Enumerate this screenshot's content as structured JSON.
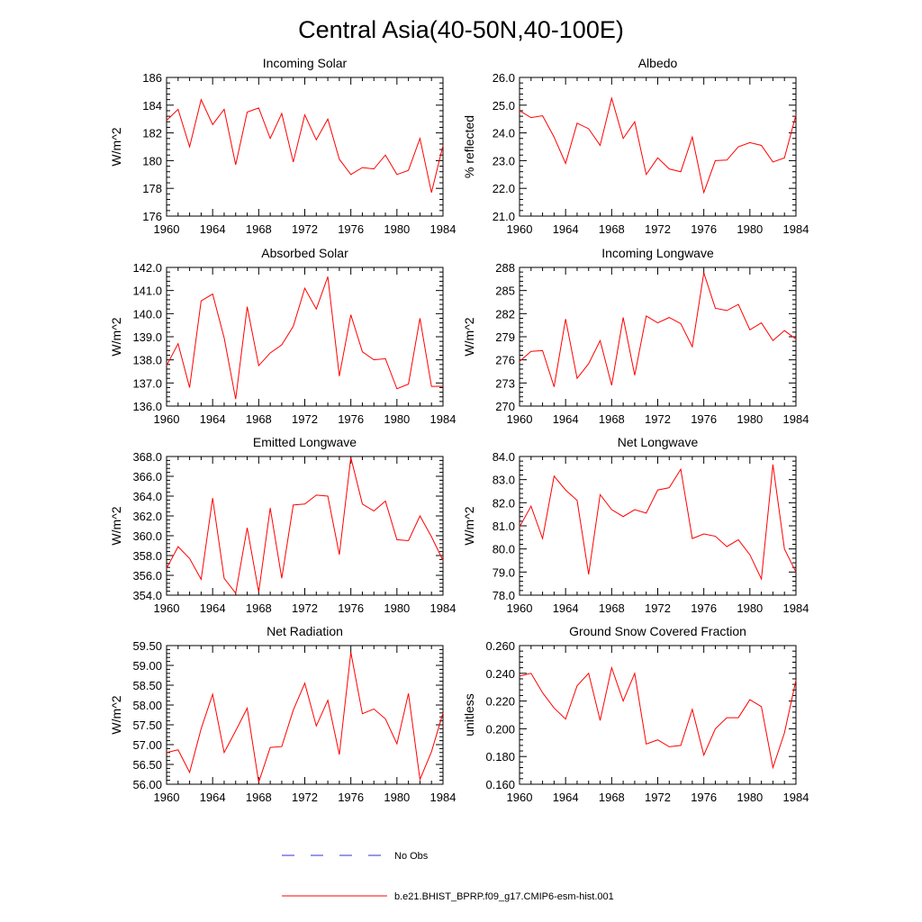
{
  "title": "Central Asia(40-50N,40-100E)",
  "colors": {
    "model": "#ff0000",
    "obs": "#3333cc",
    "axis": "#000000"
  },
  "legend": [
    {
      "label": "No Obs",
      "style": "dashed",
      "color": "#3333cc"
    },
    {
      "label": "b.e21.BHIST_BPRP.f09_g17.CMIP6-esm-hist.001",
      "style": "solid",
      "color": "#ff0000"
    }
  ],
  "chart_data": [
    {
      "type": "line",
      "title": "Incoming Solar",
      "ylabel": "W/m^2",
      "xlim": [
        1960,
        1984
      ],
      "ylim": [
        176,
        186
      ],
      "yticks": [
        176,
        178,
        180,
        182,
        184,
        186
      ],
      "ytick_labels": [
        "176",
        "178",
        "180",
        "182",
        "184",
        "186"
      ],
      "xticks": [
        1960,
        1964,
        1968,
        1972,
        1976,
        1980,
        1984
      ],
      "xtick_labels": [
        "1960",
        "1964",
        "1968",
        "1972",
        "1976",
        "1980",
        "1984"
      ],
      "x": [
        1960,
        1961,
        1962,
        1963,
        1964,
        1965,
        1966,
        1967,
        1968,
        1969,
        1970,
        1971,
        1972,
        1973,
        1974,
        1975,
        1976,
        1977,
        1978,
        1979,
        1980,
        1981,
        1982,
        1983,
        1984
      ],
      "series": [
        {
          "name": "b.e21.BHIST_BPRP.f09_g17.CMIP6-esm-hist.001",
          "values": [
            182.9,
            183.7,
            181.0,
            184.4,
            182.6,
            183.7,
            179.7,
            183.5,
            183.8,
            181.6,
            183.4,
            179.9,
            183.3,
            181.5,
            183.0,
            180.1,
            179.0,
            179.5,
            179.4,
            180.4,
            179.0,
            179.3,
            181.6,
            177.7,
            181.1
          ]
        }
      ]
    },
    {
      "type": "line",
      "title": "Albedo",
      "ylabel": "% reflected",
      "xlim": [
        1960,
        1984
      ],
      "ylim": [
        21,
        26
      ],
      "yticks": [
        21,
        22,
        23,
        24,
        25,
        26
      ],
      "ytick_labels": [
        "21.0",
        "22.0",
        "23.0",
        "24.0",
        "25.0",
        "26.0"
      ],
      "xticks": [
        1960,
        1964,
        1968,
        1972,
        1976,
        1980,
        1984
      ],
      "xtick_labels": [
        "1960",
        "1964",
        "1968",
        "1972",
        "1976",
        "1980",
        "1984"
      ],
      "x": [
        1960,
        1961,
        1962,
        1963,
        1964,
        1965,
        1966,
        1967,
        1968,
        1969,
        1970,
        1971,
        1972,
        1973,
        1974,
        1975,
        1976,
        1977,
        1978,
        1979,
        1980,
        1981,
        1982,
        1983,
        1984
      ],
      "series": [
        {
          "name": "b.e21.BHIST_BPRP.f09_g17.CMIP6-esm-hist.001",
          "values": [
            24.8,
            24.55,
            24.62,
            23.85,
            22.9,
            24.35,
            24.15,
            23.55,
            25.25,
            23.8,
            24.4,
            22.5,
            23.1,
            22.7,
            22.6,
            23.85,
            21.85,
            23.0,
            23.02,
            23.5,
            23.65,
            23.55,
            22.95,
            23.1,
            24.65
          ]
        }
      ]
    },
    {
      "type": "line",
      "title": "Absorbed Solar",
      "ylabel": "W/m^2",
      "xlim": [
        1960,
        1984
      ],
      "ylim": [
        136,
        142
      ],
      "yticks": [
        136,
        137,
        138,
        139,
        140,
        141,
        142
      ],
      "ytick_labels": [
        "136.0",
        "137.0",
        "138.0",
        "139.0",
        "140.0",
        "141.0",
        "142.0"
      ],
      "xticks": [
        1960,
        1964,
        1968,
        1972,
        1976,
        1980,
        1984
      ],
      "xtick_labels": [
        "1960",
        "1964",
        "1968",
        "1972",
        "1976",
        "1980",
        "1984"
      ],
      "x": [
        1960,
        1961,
        1962,
        1963,
        1964,
        1965,
        1966,
        1967,
        1968,
        1969,
        1970,
        1971,
        1972,
        1973,
        1974,
        1975,
        1976,
        1977,
        1978,
        1979,
        1980,
        1981,
        1982,
        1983,
        1984
      ],
      "series": [
        {
          "name": "b.e21.BHIST_BPRP.f09_g17.CMIP6-esm-hist.001",
          "values": [
            137.75,
            138.7,
            136.8,
            140.55,
            140.85,
            138.95,
            136.3,
            140.3,
            137.75,
            138.3,
            138.65,
            139.45,
            141.1,
            140.2,
            141.6,
            137.3,
            139.95,
            138.35,
            138.0,
            138.05,
            136.75,
            136.95,
            139.8,
            136.85,
            136.85
          ]
        }
      ]
    },
    {
      "type": "line",
      "title": "Incoming Longwave",
      "ylabel": "W/m^2",
      "xlim": [
        1960,
        1984
      ],
      "ylim": [
        270,
        288
      ],
      "yticks": [
        270,
        273,
        276,
        279,
        282,
        285,
        288
      ],
      "ytick_labels": [
        "270",
        "273",
        "276",
        "279",
        "282",
        "285",
        "288"
      ],
      "xticks": [
        1960,
        1964,
        1968,
        1972,
        1976,
        1980,
        1984
      ],
      "xtick_labels": [
        "1960",
        "1964",
        "1968",
        "1972",
        "1976",
        "1980",
        "1984"
      ],
      "x": [
        1960,
        1961,
        1962,
        1963,
        1964,
        1965,
        1966,
        1967,
        1968,
        1969,
        1970,
        1971,
        1972,
        1973,
        1974,
        1975,
        1976,
        1977,
        1978,
        1979,
        1980,
        1981,
        1982,
        1983,
        1984
      ],
      "series": [
        {
          "name": "b.e21.BHIST_BPRP.f09_g17.CMIP6-esm-hist.001",
          "values": [
            275.8,
            277.1,
            277.2,
            272.5,
            281.3,
            273.6,
            275.5,
            278.5,
            272.7,
            281.5,
            274.0,
            281.7,
            280.8,
            281.5,
            280.7,
            277.7,
            287.3,
            282.7,
            282.4,
            283.2,
            279.9,
            280.8,
            278.5,
            279.8,
            278.7
          ]
        }
      ]
    },
    {
      "type": "line",
      "title": "Emitted Longwave",
      "ylabel": "W/m^2",
      "xlim": [
        1960,
        1984
      ],
      "ylim": [
        354,
        368
      ],
      "yticks": [
        354,
        356,
        358,
        360,
        362,
        364,
        366,
        368
      ],
      "ytick_labels": [
        "354.0",
        "356.0",
        "358.0",
        "360.0",
        "362.0",
        "364.0",
        "366.0",
        "368.0"
      ],
      "xticks": [
        1960,
        1964,
        1968,
        1972,
        1976,
        1980,
        1984
      ],
      "xtick_labels": [
        "1960",
        "1964",
        "1968",
        "1972",
        "1976",
        "1980",
        "1984"
      ],
      "x": [
        1960,
        1961,
        1962,
        1963,
        1964,
        1965,
        1966,
        1967,
        1968,
        1969,
        1970,
        1971,
        1972,
        1973,
        1974,
        1975,
        1976,
        1977,
        1978,
        1979,
        1980,
        1981,
        1982,
        1983,
        1984
      ],
      "series": [
        {
          "name": "b.e21.BHIST_BPRP.f09_g17.CMIP6-esm-hist.001",
          "values": [
            356.7,
            358.9,
            357.7,
            355.6,
            363.8,
            355.7,
            354.2,
            360.8,
            354.3,
            362.8,
            355.7,
            363.1,
            363.2,
            364.1,
            364.0,
            358.1,
            367.9,
            363.2,
            362.5,
            363.5,
            359.6,
            359.5,
            362.0,
            359.9,
            357.5
          ]
        }
      ]
    },
    {
      "type": "line",
      "title": "Net Longwave",
      "ylabel": "W/m^2",
      "xlim": [
        1960,
        1984
      ],
      "ylim": [
        78,
        84
      ],
      "yticks": [
        78,
        79,
        80,
        81,
        82,
        83,
        84
      ],
      "ytick_labels": [
        "78.0",
        "79.0",
        "80.0",
        "81.0",
        "82.0",
        "83.0",
        "84.0"
      ],
      "xticks": [
        1960,
        1964,
        1968,
        1972,
        1976,
        1980,
        1984
      ],
      "xtick_labels": [
        "1960",
        "1964",
        "1968",
        "1972",
        "1976",
        "1980",
        "1984"
      ],
      "x": [
        1960,
        1961,
        1962,
        1963,
        1964,
        1965,
        1966,
        1967,
        1968,
        1969,
        1970,
        1971,
        1972,
        1973,
        1974,
        1975,
        1976,
        1977,
        1978,
        1979,
        1980,
        1981,
        1982,
        1983,
        1984
      ],
      "series": [
        {
          "name": "b.e21.BHIST_BPRP.f09_g17.CMIP6-esm-hist.001",
          "values": [
            80.95,
            81.85,
            80.45,
            83.15,
            82.55,
            82.1,
            78.9,
            82.35,
            81.7,
            81.4,
            81.7,
            81.55,
            82.55,
            82.65,
            83.45,
            80.45,
            80.65,
            80.55,
            80.1,
            80.4,
            79.75,
            78.7,
            83.65,
            80.0,
            79.0
          ]
        }
      ]
    },
    {
      "type": "line",
      "title": "Net Radiation",
      "ylabel": "W/m^2",
      "xlim": [
        1960,
        1984
      ],
      "ylim": [
        56,
        59.5
      ],
      "yticks": [
        56,
        56.5,
        57,
        57.5,
        58,
        58.5,
        59,
        59.5
      ],
      "ytick_labels": [
        "56.00",
        "56.50",
        "57.00",
        "57.50",
        "58.00",
        "58.50",
        "59.00",
        "59.50"
      ],
      "xticks": [
        1960,
        1964,
        1968,
        1972,
        1976,
        1980,
        1984
      ],
      "xtick_labels": [
        "1960",
        "1964",
        "1968",
        "1972",
        "1976",
        "1980",
        "1984"
      ],
      "x": [
        1960,
        1961,
        1962,
        1963,
        1964,
        1965,
        1966,
        1967,
        1968,
        1969,
        1970,
        1971,
        1972,
        1973,
        1974,
        1975,
        1976,
        1977,
        1978,
        1979,
        1980,
        1981,
        1982,
        1983,
        1984
      ],
      "series": [
        {
          "name": "b.e21.BHIST_BPRP.f09_g17.CMIP6-esm-hist.001",
          "values": [
            56.8,
            56.87,
            56.3,
            57.4,
            58.27,
            56.8,
            57.35,
            57.92,
            56.05,
            56.93,
            56.95,
            57.87,
            58.55,
            57.47,
            58.12,
            56.75,
            59.33,
            57.78,
            57.9,
            57.65,
            57.02,
            58.29,
            56.12,
            56.82,
            57.8
          ]
        }
      ]
    },
    {
      "type": "line",
      "title": "Ground Snow Covered Fraction",
      "ylabel": "unitless",
      "xlim": [
        1960,
        1984
      ],
      "ylim": [
        0.16,
        0.26
      ],
      "yticks": [
        0.16,
        0.18,
        0.2,
        0.22,
        0.24,
        0.26
      ],
      "ytick_labels": [
        "0.160",
        "0.180",
        "0.200",
        "0.220",
        "0.240",
        "0.260"
      ],
      "xticks": [
        1960,
        1964,
        1968,
        1972,
        1976,
        1980,
        1984
      ],
      "xtick_labels": [
        "1960",
        "1964",
        "1968",
        "1972",
        "1976",
        "1980",
        "1984"
      ],
      "x": [
        1960,
        1961,
        1962,
        1963,
        1964,
        1965,
        1966,
        1967,
        1968,
        1969,
        1970,
        1971,
        1972,
        1973,
        1974,
        1975,
        1976,
        1977,
        1978,
        1979,
        1980,
        1981,
        1982,
        1983,
        1984
      ],
      "series": [
        {
          "name": "b.e21.BHIST_BPRP.f09_g17.CMIP6-esm-hist.001",
          "values": [
            0.238,
            0.24,
            0.226,
            0.215,
            0.207,
            0.231,
            0.24,
            0.206,
            0.244,
            0.22,
            0.24,
            0.189,
            0.192,
            0.187,
            0.188,
            0.214,
            0.181,
            0.2,
            0.208,
            0.208,
            0.221,
            0.216,
            0.172,
            0.197,
            0.235
          ]
        }
      ]
    }
  ]
}
